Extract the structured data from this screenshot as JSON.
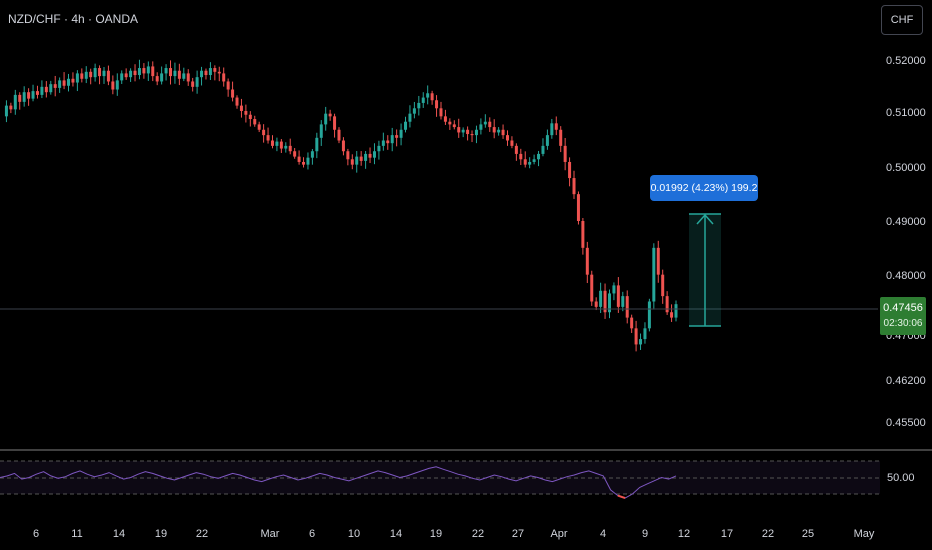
{
  "symbol_label": "NZD/CHF · 4h · OANDA",
  "currency_button": "CHF",
  "price_axis": [
    "0.52000",
    "0.51000",
    "0.50000",
    "0.49000",
    "0.48000",
    "0.47000",
    "0.46200",
    "0.45500"
  ],
  "last_price": {
    "value": "0.47456",
    "countdown": "02:30:06"
  },
  "measure_label": "0.01992 (4.23%) 199.2",
  "rsi_axis_label": "50.00",
  "time_axis": [
    "6",
    "11",
    "14",
    "19",
    "22",
    "Mar",
    "6",
    "10",
    "14",
    "19",
    "22",
    "27",
    "Apr",
    "4",
    "9",
    "12",
    "17",
    "22",
    "25",
    "May"
  ],
  "colors": {
    "up": "#26a69a",
    "down": "#ef5350",
    "rsi": "#7e57c2",
    "measure": "#1e6fd9",
    "last": "#2e7d32"
  },
  "chart_data": {
    "type": "candlestick",
    "ylim": [
      0.452,
      0.524
    ],
    "path": [
      0.5095,
      0.5115,
      0.5108,
      0.5135,
      0.5122,
      0.514,
      0.5128,
      0.5142,
      0.5135,
      0.515,
      0.514,
      0.5155,
      0.5148,
      0.5162,
      0.5152,
      0.5165,
      0.5158,
      0.5175,
      0.5165,
      0.5178,
      0.5168,
      0.5185,
      0.517,
      0.518,
      0.516,
      0.5145,
      0.5162,
      0.5175,
      0.5168,
      0.518,
      0.5172,
      0.5185,
      0.5175,
      0.5188,
      0.517,
      0.516,
      0.5175,
      0.5185,
      0.517,
      0.518,
      0.5165,
      0.5175,
      0.516,
      0.515,
      0.5168,
      0.518,
      0.5172,
      0.5185,
      0.5178,
      0.5175,
      0.516,
      0.5145,
      0.513,
      0.5115,
      0.5105,
      0.5098,
      0.509,
      0.508,
      0.507,
      0.506,
      0.505,
      0.504,
      0.5048,
      0.5035,
      0.504,
      0.503,
      0.502,
      0.501,
      0.5005,
      0.5018,
      0.503,
      0.5055,
      0.508,
      0.51,
      0.5095,
      0.507,
      0.505,
      0.503,
      0.5015,
      0.5005,
      0.502,
      0.5012,
      0.5025,
      0.5018,
      0.503,
      0.504,
      0.505,
      0.5045,
      0.506,
      0.5055,
      0.507,
      0.5085,
      0.51,
      0.511,
      0.512,
      0.513,
      0.5138,
      0.5125,
      0.511,
      0.5095,
      0.5085,
      0.508,
      0.5075,
      0.5065,
      0.507,
      0.5062,
      0.506,
      0.507,
      0.508,
      0.5085,
      0.5075,
      0.5065,
      0.507,
      0.506,
      0.505,
      0.504,
      0.5025,
      0.5015,
      0.5005,
      0.501,
      0.5015,
      0.5025,
      0.504,
      0.506,
      0.5082,
      0.507,
      0.504,
      0.501,
      0.498,
      0.495,
      0.49,
      0.485,
      0.48,
      0.475,
      0.474,
      0.477,
      0.473,
      0.4765,
      0.478,
      0.474,
      0.476,
      0.472,
      0.47,
      0.467,
      0.468,
      0.47,
      0.475,
      0.485,
      0.48,
      0.476,
      0.473,
      0.472,
      0.4745
    ],
    "rsi_path": [
      50,
      52,
      55,
      48,
      50,
      54,
      57,
      52,
      49,
      51,
      55,
      58,
      54,
      51,
      53,
      56,
      52,
      48,
      50,
      54,
      57,
      55,
      52,
      49,
      47,
      50,
      53,
      56,
      54,
      51,
      49,
      52,
      55,
      53,
      50,
      47,
      45,
      48,
      51,
      53,
      50,
      47,
      49,
      52,
      55,
      53,
      50,
      48,
      46,
      49,
      52,
      55,
      58,
      56,
      53,
      50,
      52,
      55,
      58,
      61,
      63,
      60,
      57,
      54,
      52,
      49,
      47,
      50,
      53,
      51,
      48,
      46,
      49,
      52,
      50,
      47,
      45,
      48,
      51,
      53,
      56,
      58,
      55,
      52,
      35,
      28,
      25,
      30,
      38,
      42,
      46,
      50,
      48,
      52
    ]
  }
}
